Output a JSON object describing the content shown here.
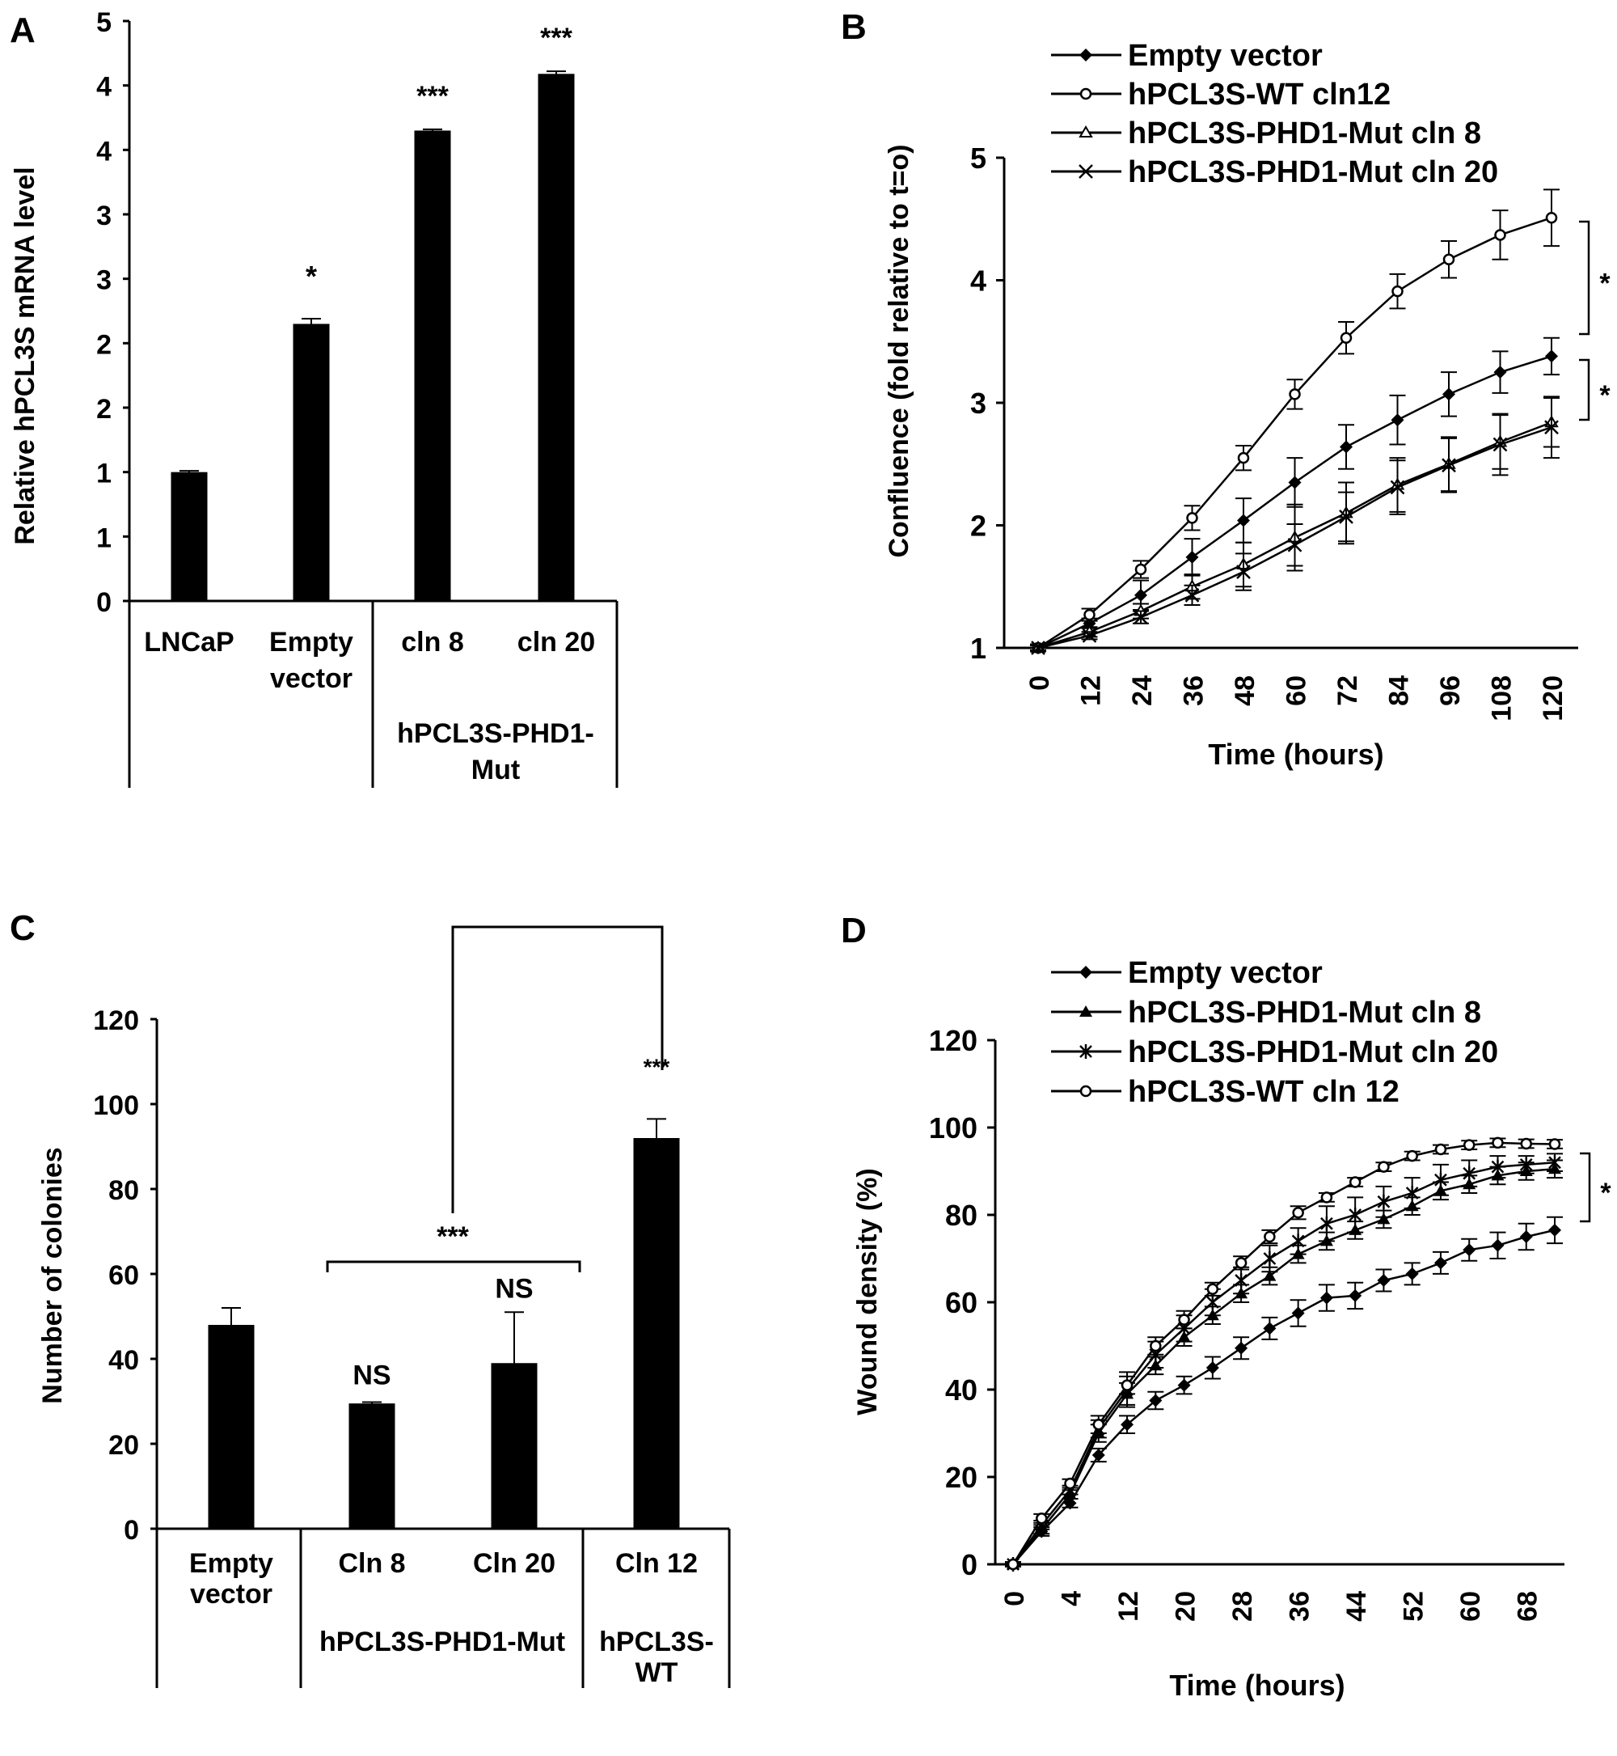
{
  "chart_data": [
    {
      "panel_label": "A",
      "type": "bar",
      "ylabel": "Relative hPCL3S mRNA level",
      "ylim": [
        0,
        4.5
      ],
      "y_tick_labels": [
        "0",
        "1",
        "1",
        "2",
        "2",
        "3",
        "3",
        "4",
        "4",
        "5"
      ],
      "categories": [
        [
          "LNCaP"
        ],
        [
          "Empty",
          "vector"
        ],
        [
          "cln 8"
        ],
        [
          "cln 20"
        ]
      ],
      "values": [
        1.0,
        2.15,
        3.65,
        4.09
      ],
      "errors": [
        0.01,
        0.04,
        0.01,
        0.02
      ],
      "annotations": [
        "",
        "*",
        "***",
        "***"
      ],
      "groups": [
        {
          "label_lines": [
            "hPCL3S-PHD1-",
            "Mut"
          ]
        }
      ],
      "bar_color": "#000000"
    },
    {
      "panel_label": "B",
      "type": "line",
      "xlabel": "Time (hours)",
      "ylabel": "Confluence  (fold relative to t=o)",
      "x": [
        0,
        12,
        24,
        36,
        48,
        60,
        72,
        84,
        96,
        108,
        120
      ],
      "x_tick_labels": [
        "0",
        "12",
        "24",
        "36",
        "48",
        "60",
        "72",
        "84",
        "96",
        "108",
        "120"
      ],
      "ylim": [
        1,
        5
      ],
      "y_tick_labels": [
        "1",
        "2",
        "3",
        "4",
        "5"
      ],
      "legend_position": "top",
      "series": [
        {
          "name": "Empty vector",
          "marker": "diamond-filled",
          "values": [
            1,
            1.2,
            1.43,
            1.74,
            2.04,
            2.35,
            2.64,
            2.86,
            3.07,
            3.25,
            3.38
          ],
          "errors": [
            0.02,
            0.04,
            0.12,
            0.15,
            0.18,
            0.2,
            0.18,
            0.2,
            0.18,
            0.17,
            0.15
          ]
        },
        {
          "name": "hPCL3S-WT cln12",
          "marker": "circle-open",
          "values": [
            1,
            1.27,
            1.64,
            2.06,
            2.55,
            3.07,
            3.53,
            3.91,
            4.17,
            4.37,
            4.51
          ],
          "errors": [
            0.03,
            0.05,
            0.07,
            0.1,
            0.1,
            0.12,
            0.13,
            0.14,
            0.15,
            0.2,
            0.23
          ]
        },
        {
          "name": "hPCL3S-PHD1-Mut cln 8",
          "marker": "triangle-open",
          "values": [
            1,
            1.13,
            1.3,
            1.5,
            1.68,
            1.9,
            2.1,
            2.33,
            2.5,
            2.68,
            2.84
          ],
          "errors": [
            0.02,
            0.04,
            0.06,
            0.1,
            0.18,
            0.27,
            0.25,
            0.22,
            0.22,
            0.22,
            0.2
          ]
        },
        {
          "name": "hPCL3S-PHD1-Mut cln 20",
          "marker": "x-cross",
          "values": [
            1,
            1.1,
            1.25,
            1.43,
            1.62,
            1.84,
            2.07,
            2.31,
            2.49,
            2.66,
            2.8
          ],
          "errors": [
            0.02,
            0.03,
            0.05,
            0.08,
            0.15,
            0.17,
            0.2,
            0.22,
            0.22,
            0.25,
            0.25
          ]
        }
      ],
      "significance": [
        "*",
        "*"
      ]
    },
    {
      "panel_label": "C",
      "type": "bar",
      "ylabel": "Number of colonies",
      "ylim": [
        0,
        120
      ],
      "y_tick_labels": [
        "0",
        "20",
        "40",
        "60",
        "80",
        "100",
        "120"
      ],
      "categories": [
        [
          "Empty",
          "vector"
        ],
        [
          "Cln 8"
        ],
        [
          "Cln 20"
        ],
        [
          "Cln 12"
        ]
      ],
      "values": [
        48,
        29.5,
        39,
        92
      ],
      "errors": [
        4,
        0.3,
        12,
        4.5
      ],
      "annotations": [
        "",
        "NS",
        "NS",
        "***"
      ],
      "groups": [
        {
          "label_lines": [
            "hPCL3S-PHD1-Mut"
          ]
        },
        {
          "label_lines": [
            "hPCL3S-",
            "WT"
          ]
        }
      ],
      "comparison_label": "***",
      "bar_color": "#000000"
    },
    {
      "panel_label": "D",
      "type": "line",
      "xlabel": "Time (hours)",
      "ylabel": "Wound density (%)",
      "x_tick_labels": [
        "0",
        "",
        "4",
        "",
        "12",
        "",
        "20",
        "",
        "28",
        "",
        "36",
        "",
        "44",
        "",
        "52",
        "",
        "60",
        "",
        "68",
        ""
      ],
      "ylim": [
        0,
        120
      ],
      "y_tick_labels": [
        "0",
        "20",
        "40",
        "60",
        "80",
        "100",
        "120"
      ],
      "legend_position": "top",
      "series": [
        {
          "name": "Empty vector",
          "marker": "diamond-filled",
          "values": [
            0,
            7.5,
            14,
            25,
            32,
            37.5,
            41,
            45,
            49.5,
            54,
            57.5,
            61,
            61.5,
            65,
            66.5,
            69,
            72,
            73,
            75,
            76.5
          ],
          "errors": [
            0.5,
            1,
            1,
            1.5,
            2,
            2,
            2,
            2.5,
            2.5,
            2.5,
            3,
            3,
            3,
            2.5,
            2.5,
            2.5,
            2.5,
            3,
            3,
            3
          ]
        },
        {
          "name": "hPCL3S-PHD1-Mut cln 8",
          "marker": "triangle-filled",
          "values": [
            0,
            8,
            16,
            30,
            39,
            45.5,
            52,
            57,
            62,
            66,
            71,
            74,
            76.5,
            79,
            82,
            85.5,
            87,
            89,
            90,
            90.5
          ],
          "errors": [
            0.5,
            1,
            1,
            2,
            2.5,
            2,
            2,
            2,
            2,
            2,
            2,
            2,
            2,
            2,
            2,
            2,
            2,
            2,
            2,
            2
          ]
        },
        {
          "name": "hPCL3S-PHD1-Mut cln 20",
          "marker": "asterisk",
          "values": [
            0,
            9,
            17,
            31,
            40,
            48,
            54,
            60,
            65,
            70,
            74,
            78,
            80,
            83,
            85,
            88,
            89.5,
            91,
            91.5,
            92
          ],
          "errors": [
            0.5,
            1,
            1,
            2,
            4,
            3,
            3,
            3,
            3,
            3,
            3,
            4,
            4,
            3.5,
            3.5,
            3.5,
            3,
            2.5,
            2,
            2
          ]
        },
        {
          "name": "hPCL3S-WT cln 12",
          "marker": "circle-open",
          "values": [
            0,
            10.5,
            18.5,
            32,
            41,
            50,
            56,
            63,
            69,
            75,
            80.5,
            84,
            87.5,
            91,
            93.5,
            95,
            96,
            96.5,
            96.3,
            96.2
          ],
          "errors": [
            0.5,
            1,
            1,
            2,
            2,
            2,
            2,
            1.5,
            1.5,
            1.5,
            1.5,
            1,
            1,
            1,
            1,
            1,
            1,
            1,
            1,
            1
          ]
        }
      ],
      "significance": [
        "*"
      ]
    }
  ]
}
